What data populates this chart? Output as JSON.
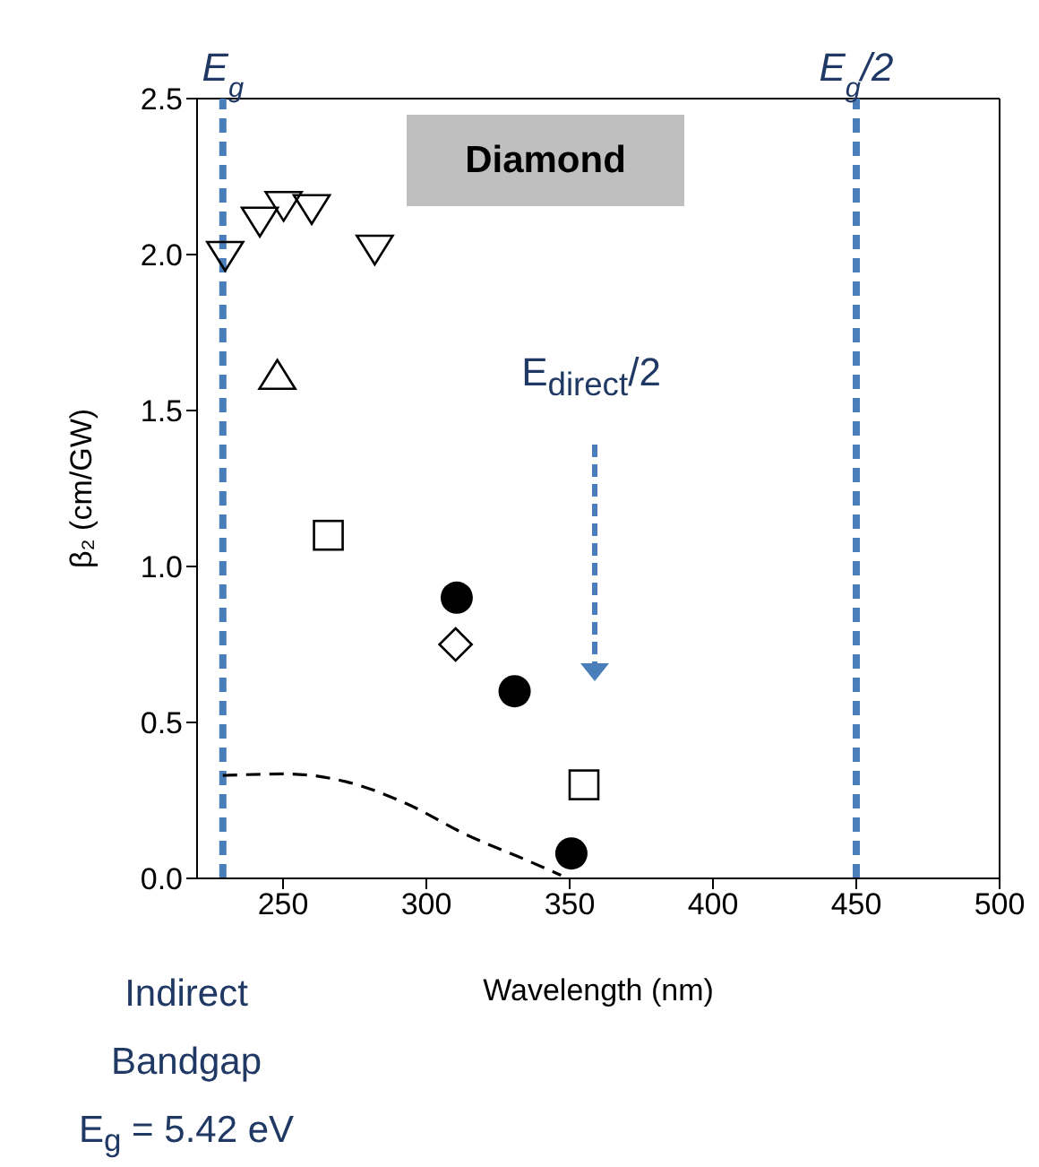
{
  "chart_data": {
    "type": "scatter",
    "xlabel": "Wavelength (nm)",
    "ylabel": "β₂ (cm/GW)",
    "xlim": [
      220,
      500
    ],
    "xticks": [
      250,
      300,
      350,
      400,
      450,
      500
    ],
    "ylim": [
      0,
      2.5
    ],
    "yticks": [
      {
        "value": 0,
        "label": "0.0"
      },
      {
        "value": 0.5,
        "label": "0.5"
      },
      {
        "value": 1,
        "label": "1.0"
      },
      {
        "value": 1.5,
        "label": "1.5"
      },
      {
        "value": 2,
        "label": "2.0"
      },
      {
        "value": 2.5,
        "label": "2.5"
      }
    ],
    "series": [
      {
        "marker": "triangle_down",
        "color": "#000000",
        "x": [
          229.8,
          241.9,
          250.2,
          260,
          282
        ],
        "values": [
          2.0,
          2.11,
          2.16,
          2.15,
          2.02
        ]
      },
      {
        "marker": "triangle",
        "color": "#000000",
        "x": [
          248
        ],
        "values": [
          1.61
        ]
      },
      {
        "marker": "square",
        "color": "#000000",
        "x": [
          265.8,
          355
        ],
        "values": [
          1.1,
          0.3
        ]
      },
      {
        "marker": "circle",
        "color": "#000000",
        "x": [
          310.6,
          330.8,
          350.6
        ],
        "values": [
          0.9,
          0.6,
          0.08
        ]
      },
      {
        "marker": "diamond",
        "color": "#000000",
        "x": [
          310.2
        ],
        "values": [
          0.75
        ]
      },
      {
        "type": "line",
        "marker": "none",
        "line_style": "dashed",
        "color": "#000000",
        "x": [
          229,
          251,
          272,
          293,
          314,
          334.6,
          347
        ],
        "values": [
          0.33,
          0.335,
          0.31,
          0.24,
          0.14,
          0.06,
          0.01
        ]
      }
    ],
    "ref_lines": [
      {
        "axis": "x",
        "value": 229,
        "label": "E$_{g}$",
        "color": "#4a7ebb",
        "line_style": "dashed"
      },
      {
        "axis": "x",
        "value": 450,
        "label": "E$_{g}$/2",
        "color": "#4a7ebb",
        "line_style": "dashed"
      }
    ],
    "annotations": [
      "Diamond",
      "E$_{direct}$/2",
      "Indirect\nBandgap\nE$_{g}$ = 5.42 eV"
    ]
  }
}
